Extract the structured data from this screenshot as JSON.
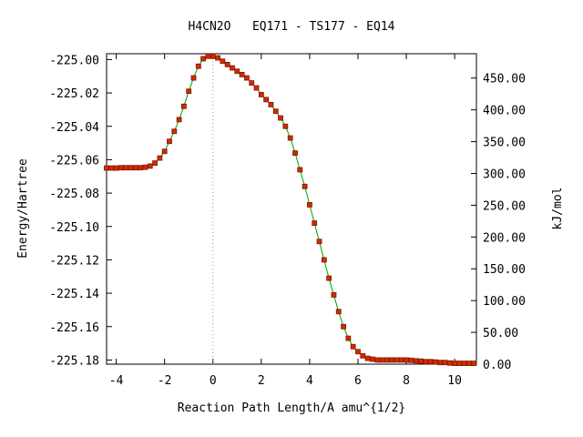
{
  "chart_data": {
    "type": "scatter",
    "title": "H4CN2O   EQ171 - TS177 - EQ14",
    "xlabel": "Reaction Path Length/A amu^{1/2}",
    "ylabel": "Energy/Hartree",
    "y2label": "kJ/mol",
    "xlim": [
      -4.4,
      10.9
    ],
    "ylim": [
      -225.1825,
      -224.9965
    ],
    "y2lim": [
      0.0,
      488.3
    ],
    "x_ticks": [
      "-4",
      "-2",
      "0",
      "2",
      "4",
      "6",
      "8",
      "10"
    ],
    "y_ticks": [
      "-225.00",
      "-225.02",
      "-225.04",
      "-225.06",
      "-225.08",
      "-225.10",
      "-225.12",
      "-225.14",
      "-225.16",
      "-225.18"
    ],
    "y2_ticks": [
      "0.00",
      "50.00",
      "100.00",
      "150.00",
      "200.00",
      "250.00",
      "300.00",
      "350.00",
      "400.00",
      "450.00"
    ],
    "grid": false,
    "legend": "none",
    "ts_marker_x": 0.0,
    "colors": {
      "points": "#d42a00",
      "point_edge": "#7a1a00",
      "line": "#00a000",
      "ts_line": "#999999"
    },
    "series": [
      {
        "x": [
          -4.4,
          -4.2,
          -4.0,
          -3.8,
          -3.6,
          -3.4,
          -3.2,
          -3.0,
          -2.8,
          -2.6,
          -2.4,
          -2.2,
          -2.0,
          -1.8,
          -1.6,
          -1.4,
          -1.2,
          -1.0,
          -0.8,
          -0.6,
          -0.4,
          -0.2,
          0.0,
          0.2,
          0.4,
          0.6,
          0.8,
          1.0,
          1.2,
          1.4,
          1.6,
          1.8,
          2.0,
          2.2,
          2.4,
          2.6,
          2.8,
          3.0,
          3.2,
          3.4,
          3.6,
          3.8,
          4.0,
          4.2,
          4.4,
          4.6,
          4.8,
          5.0,
          5.2,
          5.4,
          5.6,
          5.8,
          6.0,
          6.2,
          6.4,
          6.6,
          6.8,
          7.0,
          7.2,
          7.4,
          7.6,
          7.8,
          8.0,
          8.2,
          8.4,
          8.6,
          8.8,
          9.0,
          9.2,
          9.4,
          9.6,
          9.8,
          10.0,
          10.2,
          10.4,
          10.6,
          10.8
        ],
        "y": [
          -225.065,
          -225.065,
          -225.065,
          -225.0648,
          -225.0648,
          -225.0648,
          -225.0648,
          -225.0648,
          -225.0645,
          -225.0638,
          -225.062,
          -225.059,
          -225.055,
          -225.049,
          -225.043,
          -225.036,
          -225.028,
          -225.019,
          -225.011,
          -225.004,
          -224.9995,
          -224.998,
          -224.998,
          -224.999,
          -225.001,
          -225.003,
          -225.005,
          -225.007,
          -225.009,
          -225.011,
          -225.014,
          -225.017,
          -225.021,
          -225.024,
          -225.027,
          -225.031,
          -225.035,
          -225.04,
          -225.047,
          -225.056,
          -225.066,
          -225.076,
          -225.087,
          -225.098,
          -225.109,
          -225.12,
          -225.131,
          -225.141,
          -225.151,
          -225.16,
          -225.167,
          -225.172,
          -225.175,
          -225.1775,
          -225.179,
          -225.1795,
          -225.18,
          -225.18,
          -225.18,
          -225.18,
          -225.18,
          -225.18,
          -225.18,
          -225.1802,
          -225.1805,
          -225.1807,
          -225.181,
          -225.181,
          -225.1812,
          -225.1815,
          -225.1815,
          -225.1818,
          -225.182,
          -225.182,
          -225.182,
          -225.182,
          -225.182
        ]
      }
    ]
  }
}
